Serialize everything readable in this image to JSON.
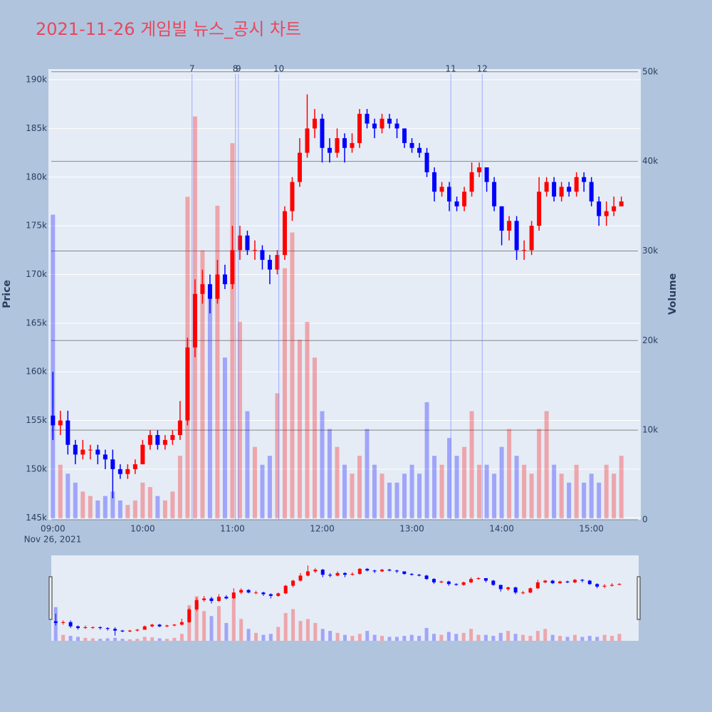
{
  "chart_data": {
    "type": "candlestick",
    "title": "2021-11-26 게임빌 뉴스_공시 차트",
    "y_label": "Price",
    "y2_label": "Volume",
    "x_date_label": "Nov 26, 2021",
    "up_color": "#ff0000",
    "down_color": "#0000ff",
    "x": [
      "09:00",
      "09:05",
      "09:10",
      "09:15",
      "09:20",
      "09:25",
      "09:30",
      "09:35",
      "09:40",
      "09:45",
      "09:50",
      "09:55",
      "10:00",
      "10:05",
      "10:10",
      "10:15",
      "10:20",
      "10:25",
      "10:30",
      "10:35",
      "10:40",
      "10:45",
      "10:50",
      "10:55",
      "11:00",
      "11:05",
      "11:10",
      "11:15",
      "11:20",
      "11:25",
      "11:30",
      "11:35",
      "11:40",
      "11:45",
      "11:50",
      "11:55",
      "12:00",
      "12:05",
      "12:10",
      "12:15",
      "12:20",
      "12:25",
      "12:30",
      "12:35",
      "12:40",
      "12:45",
      "12:50",
      "12:55",
      "13:00",
      "13:05",
      "13:10",
      "13:15",
      "13:20",
      "13:25",
      "13:30",
      "13:35",
      "13:40",
      "13:45",
      "13:50",
      "13:55",
      "14:00",
      "14:05",
      "14:10",
      "14:15",
      "14:20",
      "14:25",
      "14:30",
      "14:35",
      "14:40",
      "14:45",
      "14:50",
      "14:55",
      "15:00",
      "15:05",
      "15:10",
      "15:15",
      "15:20"
    ],
    "open": [
      155500,
      154500,
      155000,
      152500,
      151500,
      152000,
      152000,
      151500,
      151000,
      150000,
      149500,
      150000,
      150500,
      152500,
      153500,
      152500,
      153000,
      153500,
      155000,
      162500,
      168000,
      169000,
      167500,
      170000,
      169000,
      172500,
      174000,
      172500,
      172500,
      171500,
      170500,
      172000,
      176500,
      179500,
      182500,
      185000,
      186000,
      183000,
      182500,
      184000,
      183000,
      183500,
      186500,
      185500,
      185000,
      186000,
      185500,
      185000,
      183500,
      183000,
      182500,
      180500,
      178500,
      179000,
      177500,
      177000,
      178500,
      180500,
      181000,
      179500,
      177000,
      174500,
      175500,
      172500,
      172500,
      175000,
      178500,
      179500,
      178000,
      179000,
      178500,
      180000,
      179500,
      177500,
      176000,
      176500,
      177000
    ],
    "close": [
      154500,
      155000,
      152500,
      151500,
      152000,
      152000,
      151500,
      151000,
      150000,
      149500,
      150000,
      150500,
      152500,
      153500,
      152500,
      153000,
      153500,
      155000,
      162500,
      168000,
      169000,
      167500,
      170000,
      169000,
      172500,
      174000,
      172500,
      172500,
      171500,
      170500,
      172000,
      176500,
      179500,
      182500,
      185000,
      186000,
      183000,
      182500,
      184000,
      183000,
      183500,
      186500,
      185500,
      185000,
      186000,
      185500,
      185000,
      183500,
      183000,
      182500,
      180500,
      178500,
      179000,
      177500,
      177000,
      178500,
      180500,
      181000,
      179500,
      177000,
      174500,
      175500,
      172500,
      172500,
      175000,
      178500,
      179500,
      178000,
      179000,
      178500,
      180000,
      179500,
      177500,
      176000,
      176500,
      177000,
      177500
    ],
    "high": [
      160000,
      156000,
      156000,
      153000,
      153000,
      152500,
      152500,
      152000,
      152000,
      150500,
      150500,
      151000,
      153000,
      154000,
      154000,
      153500,
      154000,
      157000,
      163500,
      169500,
      170500,
      170000,
      171500,
      171000,
      175000,
      175000,
      174500,
      173500,
      173000,
      172000,
      172500,
      177000,
      180000,
      184000,
      188500,
      187000,
      186500,
      184000,
      185000,
      184500,
      184500,
      187000,
      187000,
      186000,
      186500,
      186500,
      186000,
      185000,
      184000,
      183500,
      183000,
      181000,
      179500,
      179500,
      178000,
      179000,
      181500,
      181500,
      181000,
      180000,
      177000,
      176000,
      176000,
      173500,
      175500,
      180000,
      180000,
      180000,
      179500,
      179500,
      180500,
      180500,
      180000,
      178000,
      177500,
      178000,
      178000
    ],
    "low": [
      153000,
      153500,
      151500,
      150500,
      151000,
      151000,
      150500,
      150000,
      147000,
      149000,
      149000,
      149500,
      150500,
      152000,
      152000,
      152000,
      152500,
      153000,
      154500,
      161500,
      167000,
      166000,
      167000,
      168500,
      168500,
      171500,
      172000,
      171500,
      170500,
      169000,
      170000,
      171500,
      175500,
      179000,
      182000,
      184000,
      181500,
      181500,
      182000,
      181500,
      182500,
      183000,
      185000,
      184000,
      184500,
      185000,
      184000,
      183000,
      182500,
      182000,
      180000,
      177500,
      178000,
      176500,
      176500,
      176500,
      178000,
      180000,
      178500,
      176500,
      173000,
      173500,
      171500,
      171500,
      172000,
      174500,
      178000,
      177500,
      177500,
      178000,
      178000,
      178500,
      177000,
      175000,
      175000,
      176000,
      177000
    ],
    "volume": [
      34000,
      6000,
      5000,
      4000,
      3000,
      2500,
      2000,
      2500,
      3000,
      2000,
      1500,
      2000,
      4000,
      3500,
      2500,
      2000,
      3000,
      7000,
      36000,
      45000,
      30000,
      25000,
      35000,
      18000,
      42000,
      22000,
      12000,
      8000,
      6000,
      7000,
      14000,
      28000,
      32000,
      20000,
      22000,
      18000,
      12000,
      10000,
      8000,
      6000,
      5000,
      7000,
      10000,
      6000,
      5000,
      4000,
      4000,
      5000,
      6000,
      5000,
      13000,
      7000,
      6000,
      9000,
      7000,
      8000,
      12000,
      6000,
      6000,
      5000,
      8000,
      10000,
      7000,
      6000,
      5000,
      10000,
      12000,
      6000,
      5000,
      4000,
      6000,
      4000,
      5000,
      4000,
      6000,
      5000,
      7000
    ],
    "events": [
      {
        "label": "7",
        "x": "10:33"
      },
      {
        "label": "8",
        "x": "11:02"
      },
      {
        "label": "9",
        "x": "11:04"
      },
      {
        "label": "10",
        "x": "11:31"
      },
      {
        "label": "11",
        "x": "13:26"
      },
      {
        "label": "12",
        "x": "13:47"
      }
    ],
    "xlim": [
      "08:57",
      "15:33"
    ],
    "xticks": [
      "09:00",
      "10:00",
      "11:00",
      "12:00",
      "13:00",
      "14:00",
      "15:00"
    ],
    "ylim": [
      144800,
      191100
    ],
    "yticks": [
      {
        "value": 145000,
        "label": "145k"
      },
      {
        "value": 150000,
        "label": "150k"
      },
      {
        "value": 155000,
        "label": "155k"
      },
      {
        "value": 160000,
        "label": "160k"
      },
      {
        "value": 165000,
        "label": "165k"
      },
      {
        "value": 170000,
        "label": "170k"
      },
      {
        "value": 175000,
        "label": "175k"
      },
      {
        "value": 180000,
        "label": "180k"
      },
      {
        "value": 185000,
        "label": "185k"
      },
      {
        "value": 190000,
        "label": "190k"
      }
    ],
    "y2lim": [
      0,
      50300
    ],
    "y2ticks": [
      0,
      {
        "value": 10000,
        "label": "10k"
      },
      {
        "value": 20000,
        "label": "20k"
      },
      {
        "value": 30000,
        "label": "30k"
      },
      {
        "value": 40000,
        "label": "40k"
      },
      {
        "value": 50000,
        "label": "50k"
      }
    ],
    "grid": true
  }
}
